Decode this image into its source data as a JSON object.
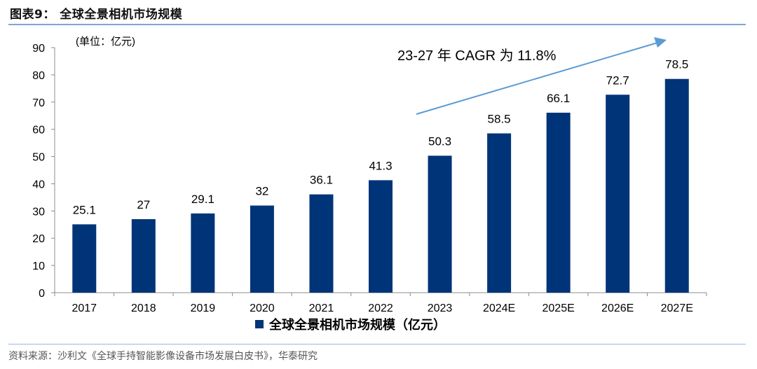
{
  "figure": {
    "title": "图表9：  全球全景相机市场规模",
    "source": "资料来源：沙利文《全球手持智能影像设备市场发展白皮书》，华泰研究"
  },
  "colors": {
    "bar": "#003478",
    "arrow": "#5b9bd5",
    "rule": "#7fa7d6"
  },
  "chart_data": {
    "type": "bar",
    "title": "全球全景相机市场规模",
    "unit_label": "(单位：亿元)",
    "categories": [
      "2017",
      "2018",
      "2019",
      "2020",
      "2021",
      "2022",
      "2023",
      "2024E",
      "2025E",
      "2026E",
      "2027E"
    ],
    "values": [
      25.1,
      27,
      29.1,
      32,
      36.1,
      41.3,
      50.3,
      58.5,
      66.1,
      72.7,
      78.5
    ],
    "value_labels": [
      "25.1",
      "27",
      "29.1",
      "32",
      "36.1",
      "41.3",
      "50.3",
      "58.5",
      "66.1",
      "72.7",
      "78.5"
    ],
    "ylim": [
      0,
      90
    ],
    "yticks": [
      0,
      10,
      20,
      30,
      40,
      50,
      60,
      70,
      80,
      90
    ],
    "legend": "全球全景相机市场规模（亿元）",
    "legend_position": "bottom-center",
    "annotation": "23-27 年 CAGR 为 11.8%",
    "grid": false
  }
}
